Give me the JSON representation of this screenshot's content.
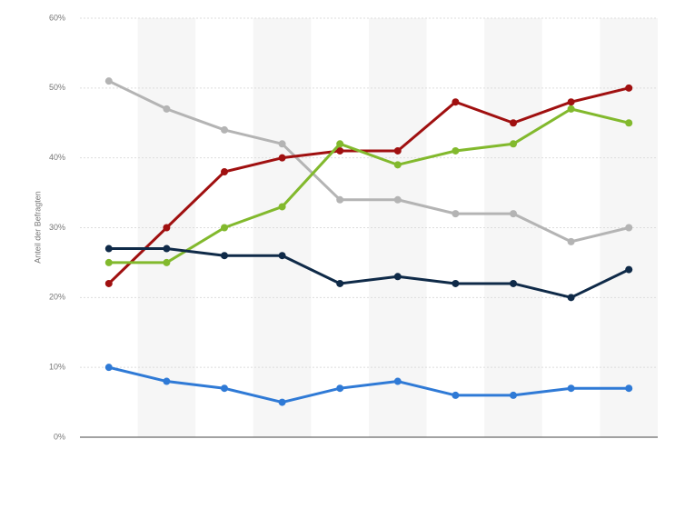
{
  "chart_data": {
    "type": "line",
    "y_label": "Anteil der Befragten",
    "categories": [
      null,
      null,
      null,
      null,
      null,
      null,
      null,
      null,
      null,
      null
    ],
    "series": [
      {
        "color": "#b4b4b4",
        "values": [
          51,
          47,
          44,
          42,
          34,
          34,
          32,
          32,
          28,
          30
        ]
      },
      {
        "color": "#a01010",
        "values": [
          22,
          30,
          38,
          40,
          41,
          41,
          48,
          45,
          48,
          50
        ]
      },
      {
        "color": "#82b92d",
        "values": [
          25,
          25,
          30,
          33,
          42,
          39,
          41,
          42,
          47,
          45
        ]
      },
      {
        "color": "#0f2a48",
        "values": [
          27,
          27,
          26,
          26,
          22,
          23,
          22,
          22,
          20,
          24
        ]
      },
      {
        "color": "#2f7ad6",
        "values": [
          10,
          8,
          7,
          5,
          7,
          8,
          6,
          6,
          7,
          7
        ]
      }
    ],
    "ylim": [
      0,
      60
    ],
    "yticks": [
      {
        "value": 0,
        "label": "0%"
      },
      {
        "value": 10,
        "label": "10%"
      },
      {
        "value": 20,
        "label": "20%"
      },
      {
        "value": 30,
        "label": "30%"
      },
      {
        "value": 40,
        "label": "40%"
      },
      {
        "value": 50,
        "label": "50%"
      },
      {
        "value": 60,
        "label": "60%"
      }
    ],
    "grid": true
  }
}
